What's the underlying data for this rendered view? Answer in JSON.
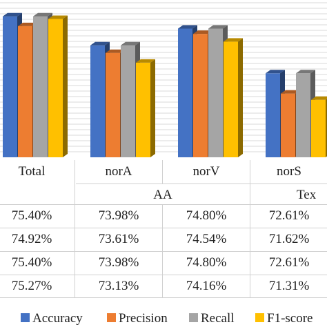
{
  "colors": {
    "accuracy": "#4472c4",
    "precision": "#ed7d31",
    "recall": "#a5a5a5",
    "f1": "#ffc000"
  },
  "chart_data": {
    "type": "bar",
    "categories": [
      "Total",
      "norA",
      "norV",
      "norS"
    ],
    "group_label": "AA",
    "group_label_2": "Tex",
    "series": [
      {
        "name": "Accuracy",
        "values": [
          75.4,
          73.98,
          74.8,
          72.61
        ]
      },
      {
        "name": "Precision",
        "values": [
          74.92,
          73.61,
          74.54,
          71.62
        ]
      },
      {
        "name": "Recall",
        "values": [
          75.4,
          73.98,
          74.8,
          72.61
        ]
      },
      {
        "name": "F1-score",
        "values": [
          75.27,
          73.13,
          74.16,
          71.31
        ]
      }
    ],
    "ylim": [
      68.5,
      76.2
    ],
    "grid": true,
    "legend": "bottom"
  },
  "table": {
    "rows": [
      [
        "75.40%",
        "73.98%",
        "74.80%",
        "72.61%"
      ],
      [
        "74.92%",
        "73.61%",
        "74.54%",
        "71.62%"
      ],
      [
        "75.40%",
        "73.98%",
        "74.80%",
        "72.61%"
      ],
      [
        "75.27%",
        "73.13%",
        "74.16%",
        "71.31%"
      ]
    ]
  }
}
